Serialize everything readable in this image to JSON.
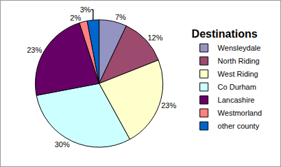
{
  "chart_data": {
    "type": "pie",
    "title": "Destinations",
    "categories": [
      "Wensleydale",
      "North Riding",
      "West Riding",
      "Co Durham",
      "Lancashire",
      "Westmorland",
      "other county"
    ],
    "values": [
      7,
      12,
      23,
      30,
      23,
      2,
      3
    ],
    "value_labels": [
      "7%",
      "12%",
      "23%",
      "30%",
      "23%",
      "2%",
      "3%"
    ],
    "colors": [
      "#9494c2",
      "#9c4a6e",
      "#ffffcc",
      "#ccffff",
      "#660066",
      "#ff8080",
      "#0066cc"
    ],
    "data_labels": true,
    "legend": "right"
  }
}
